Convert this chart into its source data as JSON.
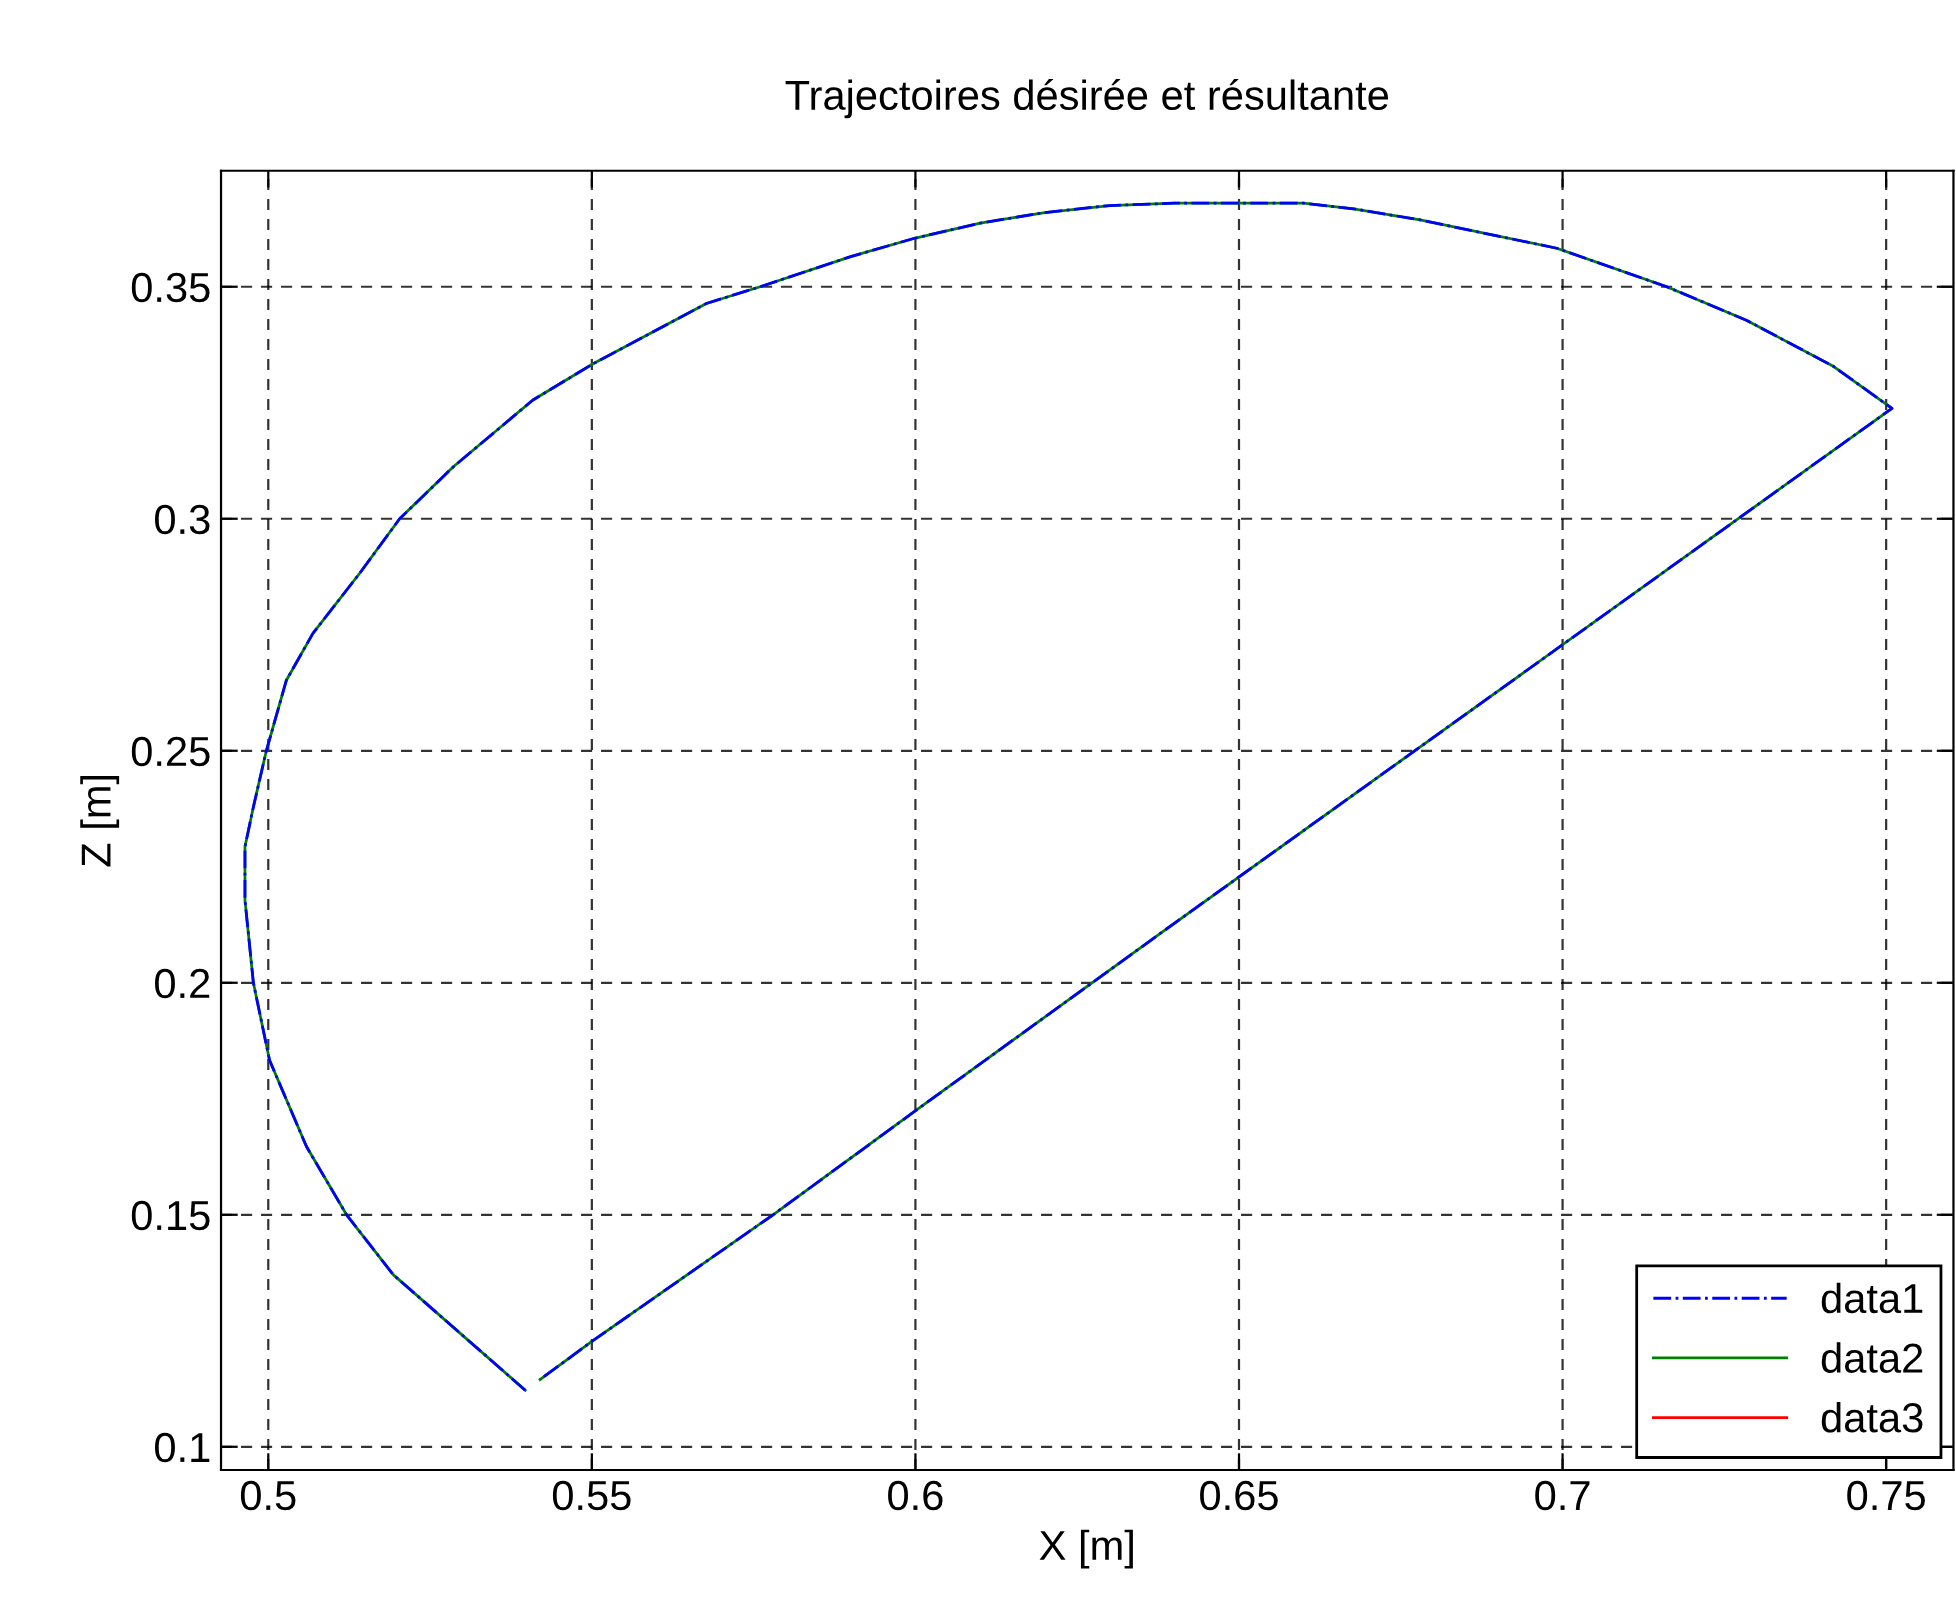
{
  "chart_data": {
    "type": "line",
    "title": "Trajectoires désirée et résultante",
    "xlabel": "X [m]",
    "ylabel": "Z [m]",
    "series": [
      {
        "name": "data1",
        "color": "#0000ff",
        "line_style": "dashdot",
        "x": [
          0.5397,
          0.5193,
          0.5121,
          0.5059,
          0.5002,
          0.4977,
          0.4964,
          0.4964,
          0.4977,
          0.4997,
          0.5028,
          0.5069,
          0.5141,
          0.5203,
          0.5286,
          0.5409,
          0.5502,
          0.5677,
          0.576,
          0.59,
          0.6,
          0.61,
          0.62,
          0.63,
          0.64,
          0.66,
          0.6677,
          0.678,
          0.6991,
          0.7161,
          0.7284,
          0.7419,
          0.7509,
          0.6378,
          0.5997,
          0.578,
          0.55,
          0.542
        ],
        "values": [
          0.1122,
          0.1371,
          0.15,
          0.1647,
          0.1833,
          0.2,
          0.2178,
          0.2293,
          0.2379,
          0.25,
          0.2652,
          0.2753,
          0.2882,
          0.3,
          0.3112,
          0.3256,
          0.3334,
          0.3464,
          0.35,
          0.3565,
          0.3605,
          0.3637,
          0.366,
          0.3675,
          0.368,
          0.368,
          0.3668,
          0.3644,
          0.3583,
          0.35,
          0.3428,
          0.3328,
          0.3238,
          0.2106,
          0.1721,
          0.15,
          0.1227,
          0.1145
        ]
      },
      {
        "name": "data2",
        "color": "#008000",
        "line_style": "solid",
        "x": [
          0.5397,
          0.5193,
          0.5121,
          0.5059,
          0.5002,
          0.4977,
          0.4964,
          0.4964,
          0.4977,
          0.4997,
          0.5028,
          0.5069,
          0.5141,
          0.5203,
          0.5286,
          0.5409,
          0.5502,
          0.5677,
          0.576,
          0.59,
          0.6,
          0.61,
          0.62,
          0.63,
          0.64,
          0.66,
          0.6677,
          0.678,
          0.6991,
          0.7161,
          0.7284,
          0.7419,
          0.7509,
          0.6378,
          0.5997,
          0.578,
          0.55,
          0.542
        ],
        "values": [
          0.1122,
          0.1371,
          0.15,
          0.1647,
          0.1833,
          0.2,
          0.2178,
          0.2293,
          0.2379,
          0.25,
          0.2652,
          0.2753,
          0.2882,
          0.3,
          0.3112,
          0.3256,
          0.3334,
          0.3464,
          0.35,
          0.3565,
          0.3605,
          0.3637,
          0.366,
          0.3675,
          0.368,
          0.368,
          0.3668,
          0.3644,
          0.3583,
          0.35,
          0.3428,
          0.3328,
          0.3238,
          0.2106,
          0.1721,
          0.15,
          0.1227,
          0.1145
        ]
      },
      {
        "name": "data3",
        "color": "#ff0000",
        "line_style": "solid"
      }
    ],
    "xlim": [
      0.4927,
      0.7604
    ],
    "ylim": [
      0.095,
      0.375
    ],
    "xticks": [
      0.5,
      0.55,
      0.6,
      0.65,
      0.7,
      0.75
    ],
    "yticks": [
      0.1,
      0.15,
      0.2,
      0.25,
      0.3,
      0.35
    ],
    "grid": true,
    "legend": "bottom right",
    "marker": "none"
  }
}
